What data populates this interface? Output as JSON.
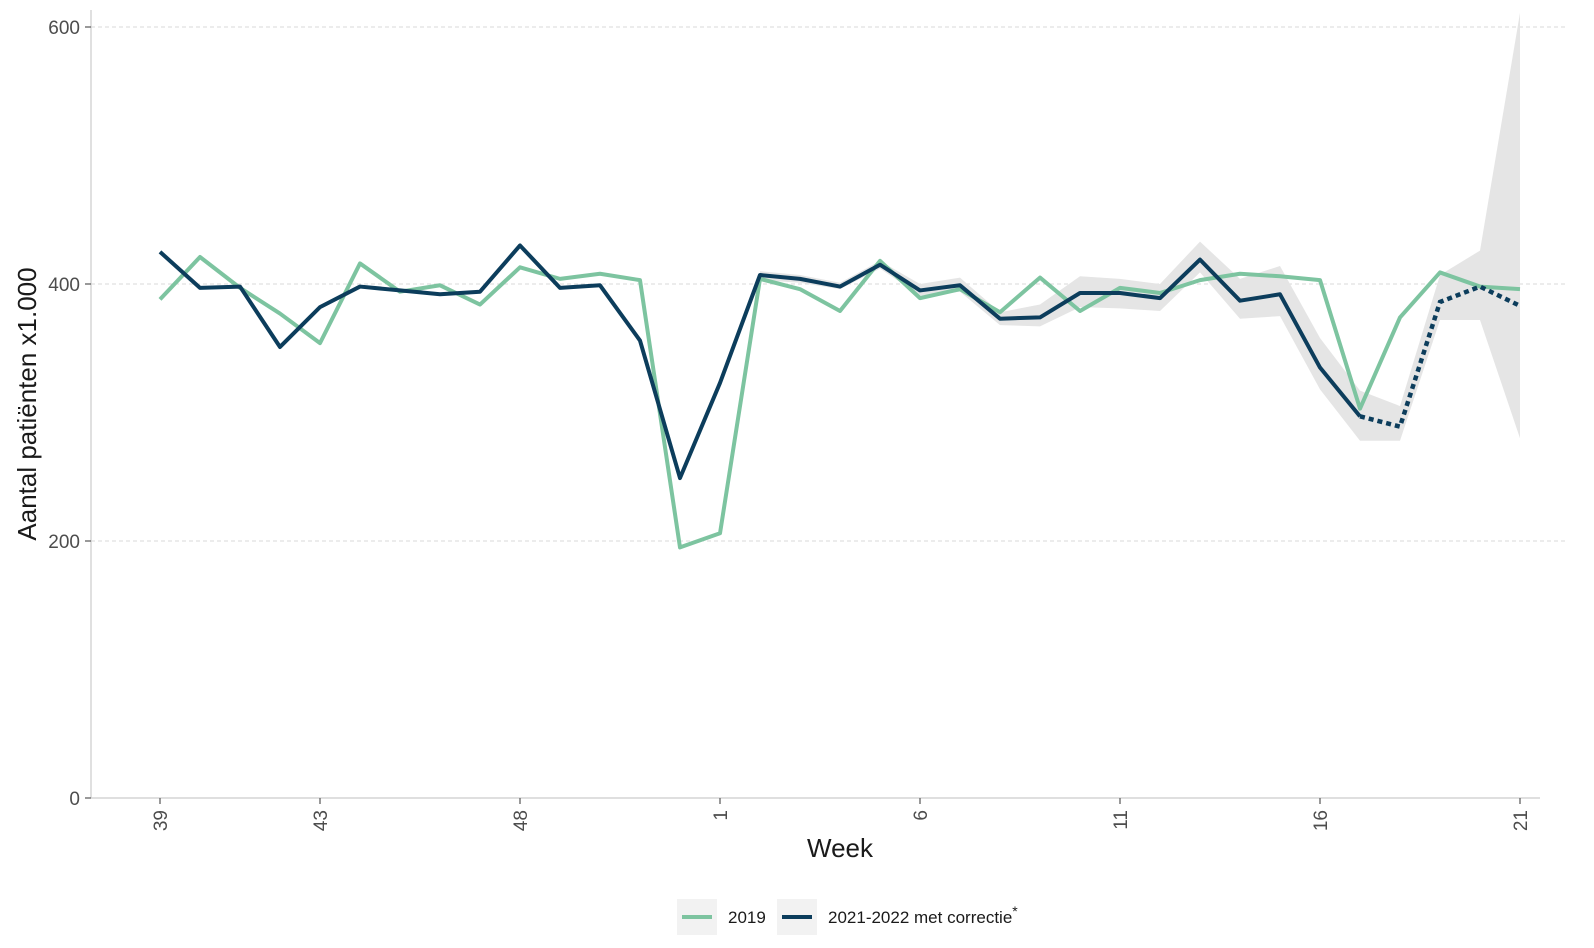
{
  "chart_data": {
    "type": "line",
    "title": "",
    "xlabel": "Week",
    "ylabel": "Aantal patiënten x1.000",
    "ylim": [
      0,
      600
    ],
    "yticks": [
      0,
      200,
      400,
      600
    ],
    "x": [
      39,
      40,
      41,
      42,
      43,
      44,
      45,
      46,
      47,
      48,
      49,
      50,
      51,
      52,
      1,
      2,
      3,
      4,
      5,
      6,
      7,
      8,
      9,
      10,
      11,
      12,
      13,
      14,
      15,
      16,
      17,
      18,
      19,
      20,
      21
    ],
    "x_tick_labels": [
      "39",
      "43",
      "48",
      "1",
      "6",
      "11",
      "16",
      "21"
    ],
    "grid": "horizontal dashed at major y ticks",
    "legend_position": "bottom",
    "series": [
      {
        "name": "2019",
        "color": "#7dc4a0",
        "values": [
          388,
          421,
          397,
          377,
          354,
          416,
          394,
          399,
          384,
          413,
          404,
          408,
          403,
          195,
          206,
          404,
          396,
          379,
          418,
          389,
          396,
          378,
          405,
          379,
          397,
          393,
          403,
          408,
          406,
          403,
          303,
          374,
          409,
          398,
          396
        ]
      },
      {
        "name": "2021-2022 met correctie",
        "name_superscript": "*",
        "color": "#0c3d5c",
        "values": [
          425,
          397,
          398,
          351,
          382,
          398,
          395,
          392,
          394,
          430,
          397,
          399,
          356,
          249,
          323,
          407,
          404,
          398,
          415,
          395,
          399,
          373,
          374,
          393,
          393,
          389,
          419,
          387,
          392,
          335,
          297,
          null,
          null,
          null,
          null
        ],
        "projected": {
          "x_start_index": 30,
          "values": [
            297,
            289,
            386,
            398,
            383
          ]
        },
        "band_color": "#e5e5e5",
        "band_lower": [
          null,
          null,
          null,
          null,
          null,
          null,
          null,
          null,
          null,
          null,
          null,
          null,
          null,
          null,
          null,
          403,
          401,
          396,
          412,
          391,
          394,
          368,
          367,
          382,
          381,
          379,
          409,
          373,
          375,
          318,
          278,
          278,
          372,
          372,
          280
        ],
        "band_upper": [
          null,
          null,
          null,
          null,
          null,
          null,
          null,
          null,
          null,
          null,
          null,
          null,
          null,
          null,
          null,
          410,
          407,
          401,
          418,
          400,
          405,
          378,
          384,
          406,
          404,
          400,
          433,
          404,
          414,
          358,
          317,
          305,
          407,
          426,
          611
        ]
      }
    ]
  }
}
